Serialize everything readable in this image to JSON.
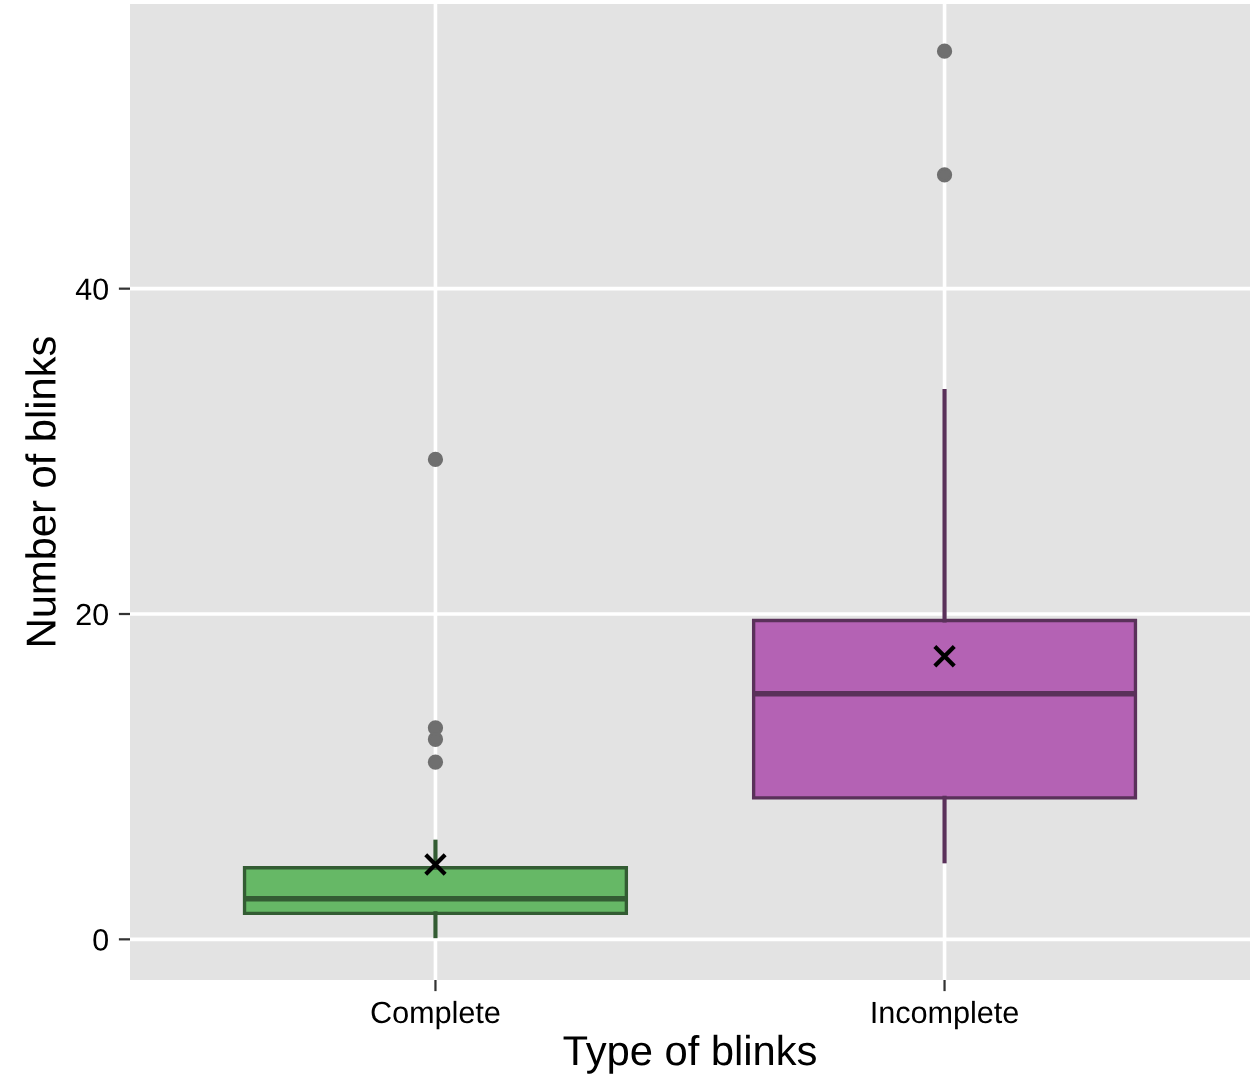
{
  "chart_data": {
    "type": "box",
    "xlabel": "Type of blinks",
    "ylabel": "Number of blinks",
    "categories": [
      "Complete",
      "Incomplete"
    ],
    "colors": [
      "#66b866",
      "#b462b4"
    ],
    "boxes": [
      {
        "low": 0.2,
        "q1": 1.6,
        "median": 2.5,
        "q3": 4.4,
        "high": 6.0,
        "mean": 4.6,
        "outliers": [
          10.9,
          12.3,
          13,
          29.5
        ]
      },
      {
        "low": 4.8,
        "q1": 8.7,
        "median": 15.1,
        "q3": 19.6,
        "high": 33.7,
        "mean": 17.4,
        "outliers": [
          47,
          54.6
        ]
      }
    ],
    "ylim": [
      -2.5,
      57.5
    ],
    "yticks": [
      0,
      20,
      40
    ],
    "grid": true,
    "legend": false
  }
}
